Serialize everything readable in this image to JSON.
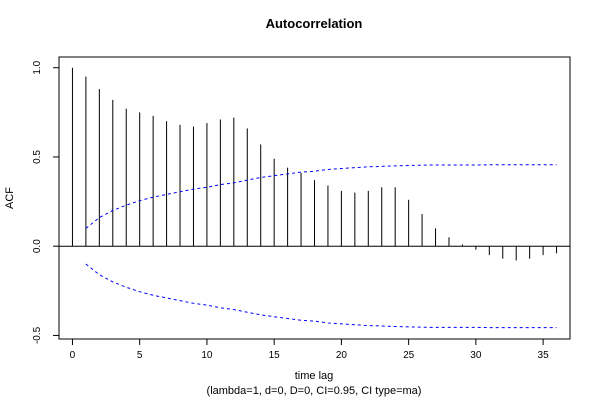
{
  "chart_data": {
    "type": "bar",
    "title": "Autocorrelation",
    "xlabel": "time lag",
    "subtitle": "(lambda=1, d=0, D=0, CI=0.95, CI type=ma)",
    "ylabel": "ACF",
    "xlim": [
      -1,
      37
    ],
    "ylim": [
      -0.52,
      1.06
    ],
    "x_ticks": [
      0,
      5,
      10,
      15,
      20,
      25,
      30,
      35
    ],
    "x_tick_labels": [
      "0",
      "5",
      "10",
      "15",
      "20",
      "25",
      "30",
      "35"
    ],
    "y_ticks": [
      -0.5,
      0.0,
      0.5,
      1.0
    ],
    "y_tick_labels": [
      "-0.5",
      "0.0",
      "0.5",
      "1.0"
    ],
    "grid": false,
    "lags": [
      0,
      1,
      2,
      3,
      4,
      5,
      6,
      7,
      8,
      9,
      10,
      11,
      12,
      13,
      14,
      15,
      16,
      17,
      18,
      19,
      20,
      21,
      22,
      23,
      24,
      25,
      26,
      27,
      28,
      29,
      30,
      31,
      32,
      33,
      34,
      35,
      36
    ],
    "acf": [
      1.0,
      0.95,
      0.88,
      0.82,
      0.77,
      0.75,
      0.73,
      0.7,
      0.68,
      0.67,
      0.69,
      0.71,
      0.72,
      0.66,
      0.57,
      0.49,
      0.44,
      0.41,
      0.37,
      0.34,
      0.31,
      0.3,
      0.31,
      0.33,
      0.33,
      0.26,
      0.18,
      0.1,
      0.05,
      0.01,
      -0.02,
      -0.05,
      -0.07,
      -0.08,
      -0.07,
      -0.05,
      -0.04
    ],
    "confidence_band": {
      "color": "#0000ff",
      "style": "dashed",
      "upper": [
        0.1,
        0.16,
        0.2,
        0.23,
        0.255,
        0.275,
        0.29,
        0.305,
        0.32,
        0.33,
        0.345,
        0.355,
        0.37,
        0.385,
        0.395,
        0.405,
        0.415,
        0.42,
        0.43,
        0.435,
        0.44,
        0.445,
        0.447,
        0.45,
        0.452,
        0.454,
        0.455,
        0.455,
        0.455,
        0.455,
        0.456,
        0.456,
        0.456,
        0.456,
        0.456,
        0.456
      ],
      "lower": [
        -0.1,
        -0.16,
        -0.2,
        -0.23,
        -0.255,
        -0.275,
        -0.29,
        -0.305,
        -0.32,
        -0.33,
        -0.345,
        -0.355,
        -0.37,
        -0.385,
        -0.395,
        -0.405,
        -0.415,
        -0.42,
        -0.43,
        -0.435,
        -0.44,
        -0.445,
        -0.447,
        -0.45,
        -0.452,
        -0.454,
        -0.455,
        -0.455,
        -0.455,
        -0.455,
        -0.456,
        -0.456,
        -0.456,
        -0.456,
        -0.456,
        -0.456
      ]
    },
    "bar_color": "#000000"
  }
}
